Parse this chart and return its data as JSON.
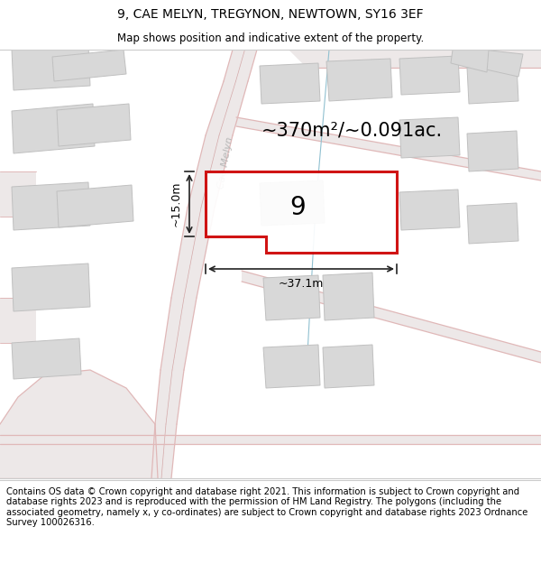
{
  "title": "9, CAE MELYN, TREGYNON, NEWTOWN, SY16 3EF",
  "subtitle": "Map shows position and indicative extent of the property.",
  "footer": "Contains OS data © Crown copyright and database right 2021. This information is subject to Crown copyright and database rights 2023 and is reproduced with the permission of HM Land Registry. The polygons (including the associated geometry, namely x, y co-ordinates) are subject to Crown copyright and database rights 2023 Ordnance Survey 100026316.",
  "area_text": "~370m²/~0.091ac.",
  "width_label": "~37.1m",
  "height_label": "~15.0m",
  "plot_number": "9",
  "map_bg": "#ffffff",
  "road_fill": "#ede8e8",
  "road_line": "#e0b8b8",
  "road_line2": "#d4a8a8",
  "building_fill": "#d8d8d8",
  "building_edge": "#c0c0c0",
  "plot_fill": "#ffffff",
  "plot_edge": "#cc0000",
  "street_label_color": "#b8b8b8",
  "dim_line_color": "#222222",
  "blue_line": "#90c0d0",
  "title_fontsize": 10,
  "subtitle_fontsize": 8.5,
  "footer_fontsize": 7.2,
  "area_fontsize": 15,
  "plot_num_fontsize": 20,
  "dim_fontsize": 9,
  "street_fontsize": 8
}
